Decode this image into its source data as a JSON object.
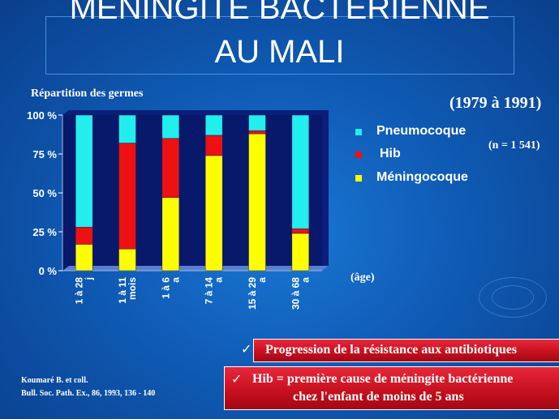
{
  "slide": {
    "title_line1": "MÉNINGITE BACTÉRIENNE",
    "title_line2": "AU MALI",
    "subtitle": "Répartition  des germes",
    "period": "(1979 à 1991)",
    "count": "(n = 1 541)",
    "age_label": "(âge)",
    "source_line1": "Koumaré  B. et coll.",
    "source_line2": "Bull. Soc. Path.  Ex., 86, 1993, 136 - 140",
    "box1_text": "Progression de la résistance aux antibiotiques",
    "box2_line1": "Hib = première cause de méningite bactérienne",
    "box2_line2": "chez l'enfant de moins de 5 ans",
    "check_symbol": "✓"
  },
  "chart_data": {
    "type": "bar",
    "stacked": true,
    "categories": [
      "1 à 28 j",
      "1 à 11 mois",
      "1 à 6 a",
      "7 à 14 a",
      "15 à 29 a",
      "30 à 68 a"
    ],
    "series": [
      {
        "name": "Méningocoque",
        "color": "#ffff00",
        "values": [
          17,
          14,
          47,
          74,
          88,
          24
        ]
      },
      {
        "name": "Hib",
        "color": "#ee1111",
        "values": [
          11,
          68,
          38,
          13,
          2,
          3
        ]
      },
      {
        "name": "Pneumocoque",
        "color": "#22eeee",
        "values": [
          72,
          18,
          15,
          13,
          10,
          73
        ]
      }
    ],
    "legend_order": [
      "Pneumocoque",
      "Hib",
      "Méningocoque"
    ],
    "yticks": [
      "0 %",
      "25 %",
      "50 %",
      "75 %",
      "100 %"
    ],
    "ylim": [
      0,
      100
    ],
    "grid": false,
    "legend_position": "right"
  }
}
